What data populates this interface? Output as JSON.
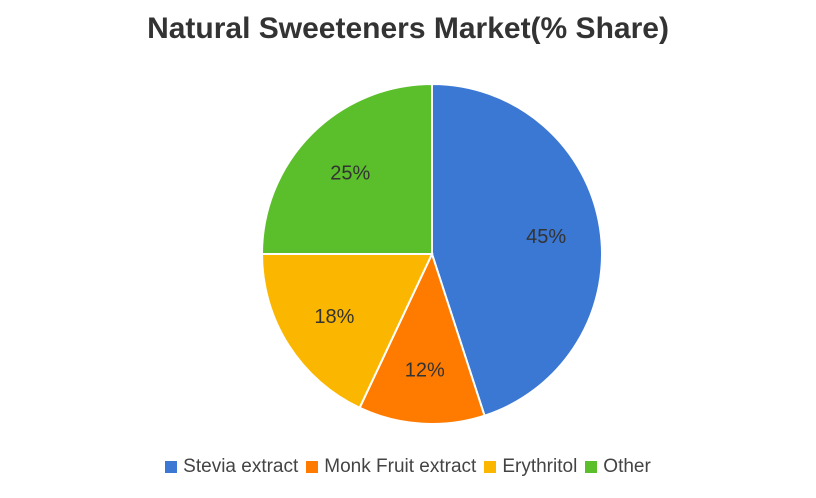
{
  "chart_data": {
    "type": "pie",
    "title": "Natural Sweeteners Market(% Share)",
    "categories": [
      "Stevia extract",
      "Monk Fruit extract",
      "Erythritol",
      "Other"
    ],
    "values": [
      45,
      12,
      18,
      25
    ],
    "labels": [
      "45%",
      "12%",
      "18%",
      "25%"
    ],
    "colors": [
      "#3b78d4",
      "#ff7b00",
      "#fbb700",
      "#5abf2a"
    ],
    "legend_position": "bottom",
    "start_angle": "12 o'clock",
    "direction": "clockwise"
  },
  "legend": {
    "items": [
      {
        "label": "Stevia extract",
        "color": "#3b78d4"
      },
      {
        "label": "Monk Fruit extract",
        "color": "#ff7b00"
      },
      {
        "label": "Erythritol",
        "color": "#fbb700"
      },
      {
        "label": "Other",
        "color": "#5abf2a"
      }
    ]
  }
}
